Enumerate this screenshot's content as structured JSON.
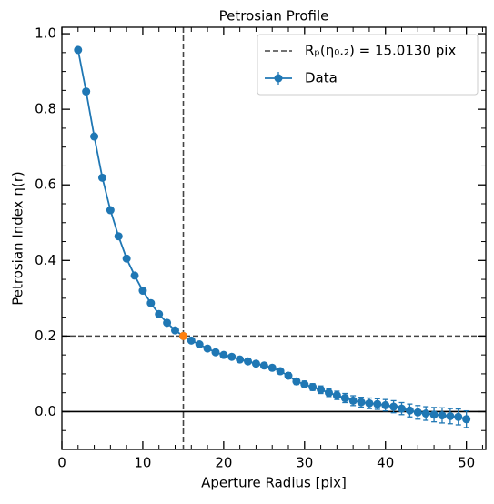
{
  "chart_data": {
    "type": "line",
    "title": "Petrosian Profile",
    "x_label": "Aperture Radius [pix]",
    "y_label": "Petrosian Index η(r)",
    "series": [
      {
        "name": "Data",
        "color": "#1f77b4",
        "x": [
          2,
          3,
          4,
          5,
          6,
          7,
          8,
          9,
          10,
          11,
          12,
          13,
          14,
          15,
          16,
          17,
          18,
          19,
          20,
          21,
          22,
          23,
          24,
          25,
          26,
          27,
          28,
          29,
          30,
          31,
          32,
          33,
          34,
          35,
          36,
          37,
          38,
          39,
          40,
          41,
          42,
          43,
          44,
          45,
          46,
          47,
          48,
          49,
          50
        ],
        "values": [
          0.957,
          0.847,
          0.728,
          0.619,
          0.533,
          0.464,
          0.405,
          0.36,
          0.32,
          0.287,
          0.258,
          0.235,
          0.215,
          0.2,
          0.188,
          0.178,
          0.167,
          0.157,
          0.15,
          0.145,
          0.138,
          0.133,
          0.127,
          0.122,
          0.116,
          0.107,
          0.095,
          0.08,
          0.072,
          0.065,
          0.058,
          0.05,
          0.043,
          0.036,
          0.029,
          0.025,
          0.022,
          0.02,
          0.017,
          0.013,
          0.008,
          0.003,
          -0.002,
          -0.005,
          -0.008,
          -0.01,
          -0.012,
          -0.014,
          -0.02
        ],
        "errors": [
          0.002,
          0.002,
          0.002,
          0.002,
          0.002,
          0.002,
          0.002,
          0.002,
          0.002,
          0.002,
          0.002,
          0.002,
          0.002,
          0.002,
          0.003,
          0.003,
          0.003,
          0.004,
          0.004,
          0.004,
          0.005,
          0.005,
          0.005,
          0.006,
          0.007,
          0.007,
          0.008,
          0.008,
          0.009,
          0.009,
          0.01,
          0.01,
          0.011,
          0.012,
          0.013,
          0.013,
          0.014,
          0.014,
          0.015,
          0.016,
          0.016,
          0.017,
          0.018,
          0.018,
          0.019,
          0.02,
          0.02,
          0.021,
          0.022
        ]
      }
    ],
    "reference": {
      "label": "Rₚ(η₀.₂) = 15.0130 pix",
      "radius": 15.013,
      "eta": 0.2,
      "color": "#ff7f0e",
      "line_color": "#444444"
    },
    "zero_line": 0,
    "xlim": [
      0,
      52.4
    ],
    "ylim": [
      -0.1,
      1.017
    ],
    "xticks": [
      0,
      10,
      20,
      30,
      40,
      50
    ],
    "xminorticks": [
      2,
      4,
      6,
      8,
      12,
      14,
      16,
      18,
      22,
      24,
      26,
      28,
      32,
      34,
      36,
      38,
      42,
      44,
      46,
      48,
      52
    ],
    "yticks": [
      {
        "value": 0,
        "label": "0.0"
      },
      0.2,
      0.4,
      0.6,
      0.8,
      {
        "value": 1,
        "label": "1.0"
      }
    ],
    "yminorticks": [
      -0.1,
      -0.05,
      0.05,
      0.1,
      0.15,
      0.25,
      0.3,
      0.35,
      0.45,
      0.5,
      0.55,
      0.65,
      0.7,
      0.75,
      0.85,
      0.9,
      0.95
    ],
    "legend": "upper right"
  }
}
